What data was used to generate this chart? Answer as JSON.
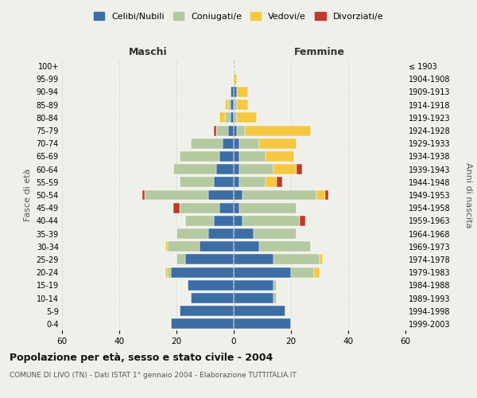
{
  "age_groups": [
    "0-4",
    "5-9",
    "10-14",
    "15-19",
    "20-24",
    "25-29",
    "30-34",
    "35-39",
    "40-44",
    "45-49",
    "50-54",
    "55-59",
    "60-64",
    "65-69",
    "70-74",
    "75-79",
    "80-84",
    "85-89",
    "90-94",
    "95-99",
    "100+"
  ],
  "birth_years": [
    "1999-2003",
    "1994-1998",
    "1989-1993",
    "1984-1988",
    "1979-1983",
    "1974-1978",
    "1969-1973",
    "1964-1968",
    "1959-1963",
    "1954-1958",
    "1949-1953",
    "1944-1948",
    "1939-1943",
    "1934-1938",
    "1929-1933",
    "1924-1928",
    "1919-1923",
    "1914-1918",
    "1909-1913",
    "1904-1908",
    "≤ 1903"
  ],
  "male": {
    "celibi": [
      22,
      19,
      15,
      16,
      22,
      17,
      12,
      9,
      7,
      5,
      9,
      7,
      6,
      5,
      4,
      2,
      1,
      1,
      1,
      0,
      0
    ],
    "coniugati": [
      0,
      0,
      0,
      0,
      1,
      3,
      11,
      11,
      10,
      14,
      22,
      12,
      15,
      14,
      11,
      4,
      2,
      1,
      0,
      0,
      0
    ],
    "vedovi": [
      0,
      0,
      0,
      0,
      1,
      0,
      1,
      0,
      0,
      0,
      0,
      0,
      0,
      0,
      0,
      0,
      2,
      1,
      0,
      0,
      0
    ],
    "divorziati": [
      0,
      0,
      0,
      0,
      0,
      0,
      0,
      0,
      0,
      2,
      1,
      0,
      0,
      0,
      0,
      1,
      0,
      0,
      0,
      0,
      0
    ]
  },
  "female": {
    "nubili": [
      20,
      18,
      14,
      14,
      20,
      14,
      9,
      7,
      3,
      2,
      3,
      2,
      2,
      2,
      2,
      1,
      0,
      0,
      1,
      0,
      0
    ],
    "coniugate": [
      0,
      0,
      1,
      1,
      8,
      16,
      18,
      15,
      20,
      20,
      26,
      9,
      12,
      9,
      7,
      3,
      1,
      1,
      0,
      0,
      0
    ],
    "vedove": [
      0,
      0,
      0,
      0,
      2,
      1,
      0,
      0,
      0,
      0,
      3,
      4,
      8,
      10,
      13,
      23,
      7,
      4,
      4,
      1,
      0
    ],
    "divorziate": [
      0,
      0,
      0,
      0,
      0,
      0,
      0,
      0,
      2,
      0,
      1,
      2,
      2,
      0,
      0,
      0,
      0,
      0,
      0,
      0,
      0
    ]
  },
  "color_celibi": "#3c6ea5",
  "color_coniugati": "#b5c9a0",
  "color_vedovi": "#f5c842",
  "color_divorziati": "#c0392b",
  "title": "Popolazione per età, sesso e stato civile - 2004",
  "subtitle": "COMUNE DI LIVO (TN) - Dati ISTAT 1° gennaio 2004 - Elaborazione TUTTITALIA.IT",
  "xlabel_left": "Maschi",
  "xlabel_right": "Femmine",
  "ylabel_left": "Fasce di età",
  "ylabel_right": "Anni di nascita",
  "xlim": 60,
  "bg_color": "#f0f0eb",
  "grid_color": "#cccccc"
}
